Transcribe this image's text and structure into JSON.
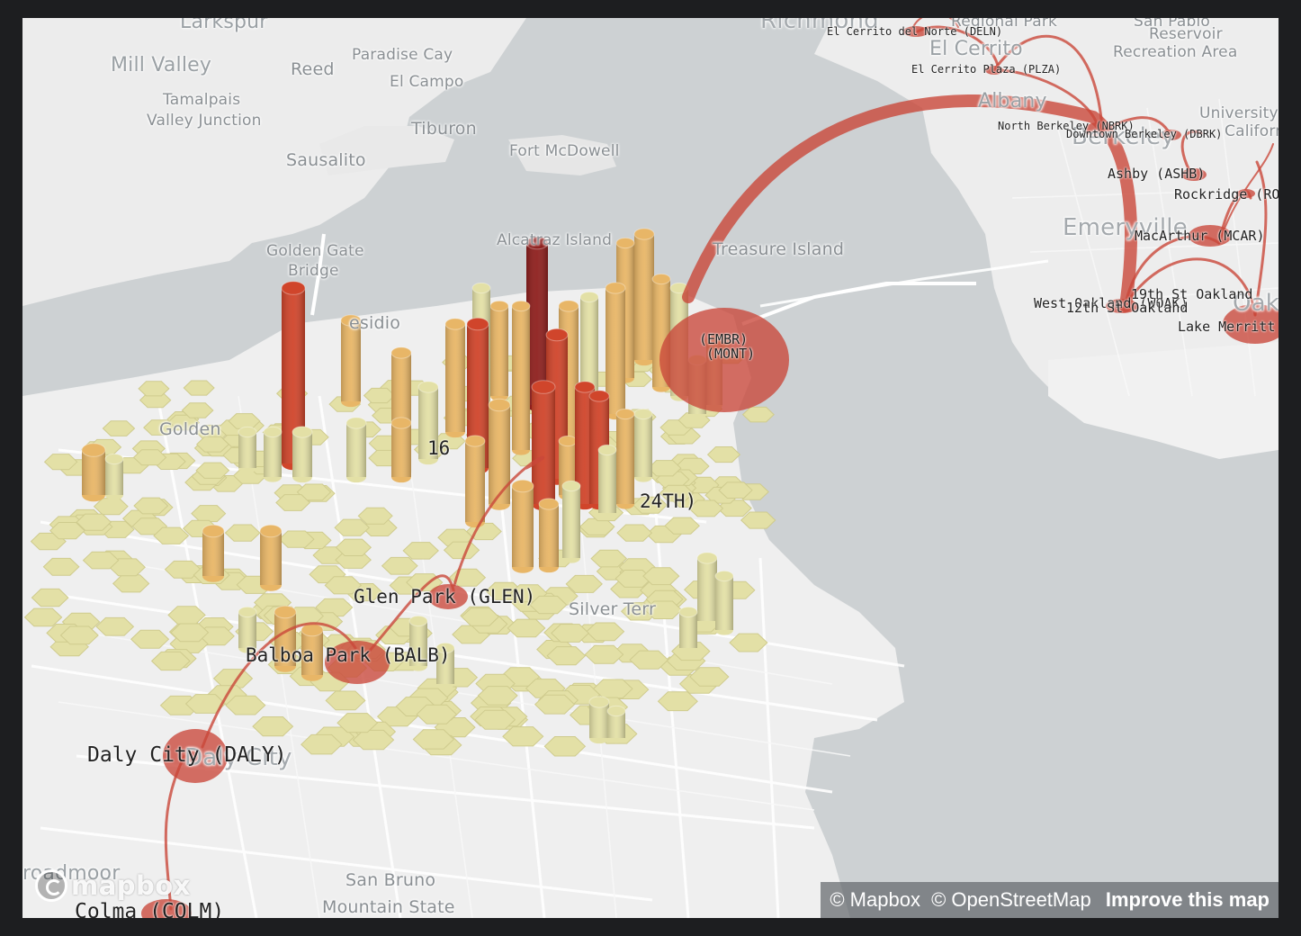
{
  "map": {
    "places": [
      {
        "id": "larkspur",
        "label": "Larkspur"
      },
      {
        "id": "richmond",
        "label": "Richmond"
      },
      {
        "id": "regional-park",
        "label": "Regional Park"
      },
      {
        "id": "san-pablo",
        "label": "San Pablo"
      },
      {
        "id": "reservoir",
        "label": "Reservoir"
      },
      {
        "id": "recreation-area",
        "label": "Recreation Area"
      },
      {
        "id": "mill-valley",
        "label": "Mill Valley"
      },
      {
        "id": "reed",
        "label": "Reed"
      },
      {
        "id": "paradise-cay",
        "label": "Paradise Cay"
      },
      {
        "id": "el-campo",
        "label": "El Campo"
      },
      {
        "id": "el-cerrito",
        "label": "El Cerrito"
      },
      {
        "id": "tamalpais",
        "label": "Tamalpais"
      },
      {
        "id": "valley-junction",
        "label": "Valley Junction"
      },
      {
        "id": "tiburon",
        "label": "Tiburon"
      },
      {
        "id": "albany",
        "label": "Albany"
      },
      {
        "id": "university",
        "label": "University"
      },
      {
        "id": "california",
        "label": "California"
      },
      {
        "id": "fort-mcdowell",
        "label": "Fort McDowell"
      },
      {
        "id": "sausalito",
        "label": "Sausalito"
      },
      {
        "id": "berkeley",
        "label": "Berkeley"
      },
      {
        "id": "emeryville",
        "label": "Emeryville"
      },
      {
        "id": "golden-gate",
        "label": "Golden Gate"
      },
      {
        "id": "bridge",
        "label": "Bridge"
      },
      {
        "id": "alcatraz",
        "label": "Alcatraz Island"
      },
      {
        "id": "treasure-island",
        "label": "Treasure Island"
      },
      {
        "id": "oakland",
        "label": "Oakland"
      },
      {
        "id": "presidio",
        "label": "esidio"
      },
      {
        "id": "golden",
        "label": "Golden"
      },
      {
        "id": "silver-terrace",
        "label": "Silver Terr"
      },
      {
        "id": "daly-city",
        "label": "Daly City"
      },
      {
        "id": "broadmoor",
        "label": "roadmoor"
      },
      {
        "id": "san-bruno",
        "label": "San Bruno"
      },
      {
        "id": "mountain-state",
        "label": "Mountain State"
      }
    ],
    "stations": [
      {
        "id": "deln",
        "label": "El Cerrito del Norte (DELN)"
      },
      {
        "id": "plza",
        "label": "El Cerrito Plaza (PLZA)"
      },
      {
        "id": "nbrk",
        "label": "North Berkeley (NBRK)"
      },
      {
        "id": "dbrk",
        "label": "Downtown Berkeley (DBRK)"
      },
      {
        "id": "ashb",
        "label": "Ashby (ASHB)"
      },
      {
        "id": "rock",
        "label": "Rockridge (ROCK)"
      },
      {
        "id": "mcar",
        "label": "MacArthur (MCAR)"
      },
      {
        "id": "woak",
        "label": "West Oakland (WOAK)"
      },
      {
        "id": "12th",
        "label": "12th St Oakland"
      },
      {
        "id": "19th",
        "label": "19th St Oakland"
      },
      {
        "id": "lake",
        "label": "Lake Merritt"
      },
      {
        "id": "embr",
        "label": "(EMBR)"
      },
      {
        "id": "mont",
        "label": "(MONT)"
      },
      {
        "id": "16th",
        "label": "16"
      },
      {
        "id": "24th",
        "label": "24TH)"
      },
      {
        "id": "glen",
        "label": "Glen Park (GLEN)"
      },
      {
        "id": "balb",
        "label": "Balboa Park (BALB)"
      },
      {
        "id": "daly",
        "label": "Daly City (DALY)"
      },
      {
        "id": "colm",
        "label": "Colma (COLM)"
      }
    ],
    "logo_text": "mapbox",
    "attribution": {
      "mapbox": "© Mapbox",
      "osm": "© OpenStreetMap",
      "improve": "Improve this map"
    },
    "colors": {
      "water": "#cdd1d3",
      "land": "#efefef",
      "arc": "#c9473a",
      "hex_low": "#e3e0a6",
      "hex_mid": "#e8b667",
      "hex_high": "#d0452b",
      "hex_max": "#8e1f1d"
    }
  }
}
